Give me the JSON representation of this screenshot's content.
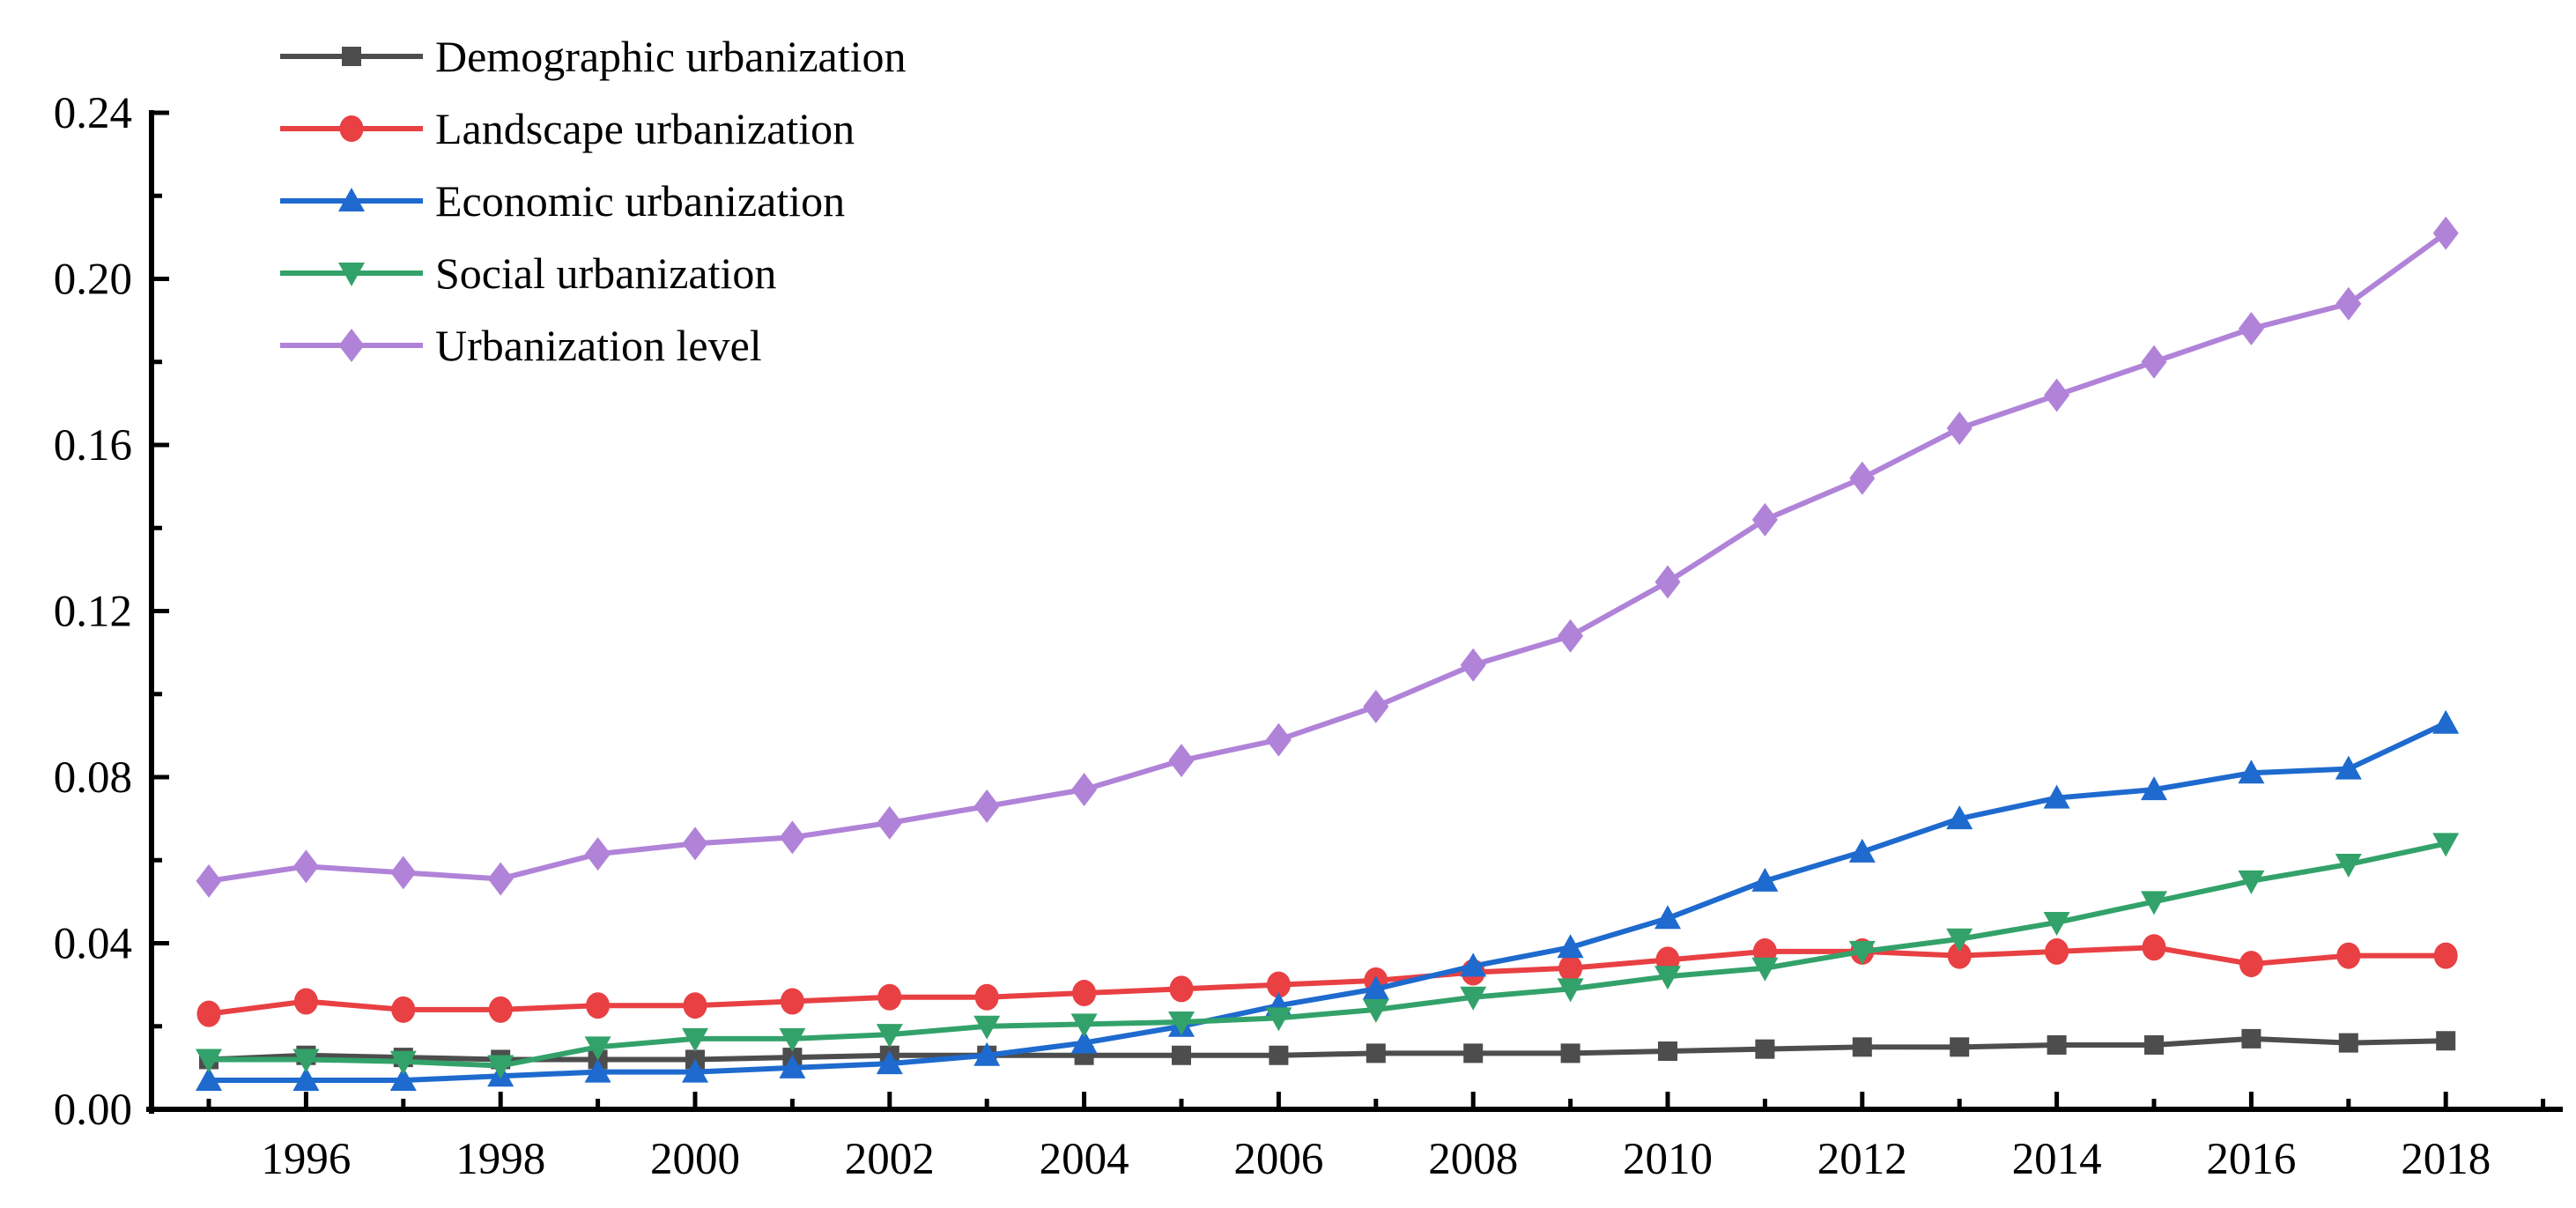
{
  "figure": {
    "background": "#ffffff",
    "axis_color": "#000000"
  },
  "chart_data": {
    "type": "line",
    "title": "",
    "xlabel": "",
    "ylabel": "",
    "grid": false,
    "legend_position": "top-left",
    "x": [
      1995,
      1996,
      1997,
      1998,
      1999,
      2000,
      2001,
      2002,
      2003,
      2004,
      2005,
      2006,
      2007,
      2008,
      2009,
      2010,
      2011,
      2012,
      2013,
      2014,
      2015,
      2016,
      2017,
      2018
    ],
    "x_axis": {
      "major_tick_years": [
        1996,
        1998,
        2000,
        2002,
        2004,
        2006,
        2008,
        2010,
        2012,
        2014,
        2016,
        2018
      ],
      "minor_tick_years": [
        1995,
        1997,
        1999,
        2001,
        2003,
        2005,
        2007,
        2009,
        2011,
        2013,
        2015,
        2017,
        2019
      ],
      "tick_labels": [
        "1996",
        "1998",
        "2000",
        "2002",
        "2004",
        "2006",
        "2008",
        "2010",
        "2012",
        "2014",
        "2016",
        "2018"
      ]
    },
    "y_axis": {
      "min": 0.0,
      "max": 0.24,
      "major_step": 0.04,
      "minor_step": 0.02,
      "tick_labels": [
        "0.00",
        "0.04",
        "0.08",
        "0.12",
        "0.16",
        "0.20",
        "0.24"
      ]
    },
    "series": [
      {
        "name": "Demographic urbanization",
        "color": "#4d4d4d",
        "marker": "square",
        "values": [
          0.012,
          0.013,
          0.0125,
          0.012,
          0.012,
          0.012,
          0.0125,
          0.013,
          0.013,
          0.013,
          0.013,
          0.013,
          0.0135,
          0.0135,
          0.0135,
          0.014,
          0.0145,
          0.015,
          0.015,
          0.0155,
          0.0155,
          0.017,
          0.016,
          0.0165
        ]
      },
      {
        "name": "Landscape urbanization",
        "color": "#e84043",
        "marker": "circle",
        "values": [
          0.023,
          0.026,
          0.024,
          0.024,
          0.025,
          0.025,
          0.026,
          0.027,
          0.027,
          0.028,
          0.029,
          0.03,
          0.031,
          0.033,
          0.034,
          0.036,
          0.038,
          0.038,
          0.037,
          0.038,
          0.039,
          0.035,
          0.037,
          0.037
        ]
      },
      {
        "name": "Economic urbanization",
        "color": "#1e6ace",
        "marker": "triangle-up",
        "values": [
          0.007,
          0.007,
          0.007,
          0.008,
          0.009,
          0.009,
          0.01,
          0.011,
          0.013,
          0.016,
          0.02,
          0.025,
          0.029,
          0.0345,
          0.039,
          0.046,
          0.055,
          0.062,
          0.07,
          0.075,
          0.077,
          0.081,
          0.082,
          0.093
        ]
      },
      {
        "name": "Social urbanization",
        "color": "#33a26a",
        "marker": "triangle-down",
        "values": [
          0.012,
          0.012,
          0.0115,
          0.0105,
          0.015,
          0.017,
          0.017,
          0.018,
          0.02,
          0.0205,
          0.021,
          0.022,
          0.024,
          0.027,
          0.029,
          0.032,
          0.034,
          0.038,
          0.041,
          0.045,
          0.05,
          0.055,
          0.059,
          0.064
        ]
      },
      {
        "name": "Urbanization level",
        "color": "#b083d8",
        "marker": "diamond",
        "values": [
          0.055,
          0.0585,
          0.057,
          0.0555,
          0.0615,
          0.064,
          0.0655,
          0.069,
          0.073,
          0.077,
          0.084,
          0.089,
          0.097,
          0.107,
          0.114,
          0.127,
          0.142,
          0.152,
          0.164,
          0.172,
          0.18,
          0.188,
          0.194,
          0.211
        ]
      }
    ]
  }
}
